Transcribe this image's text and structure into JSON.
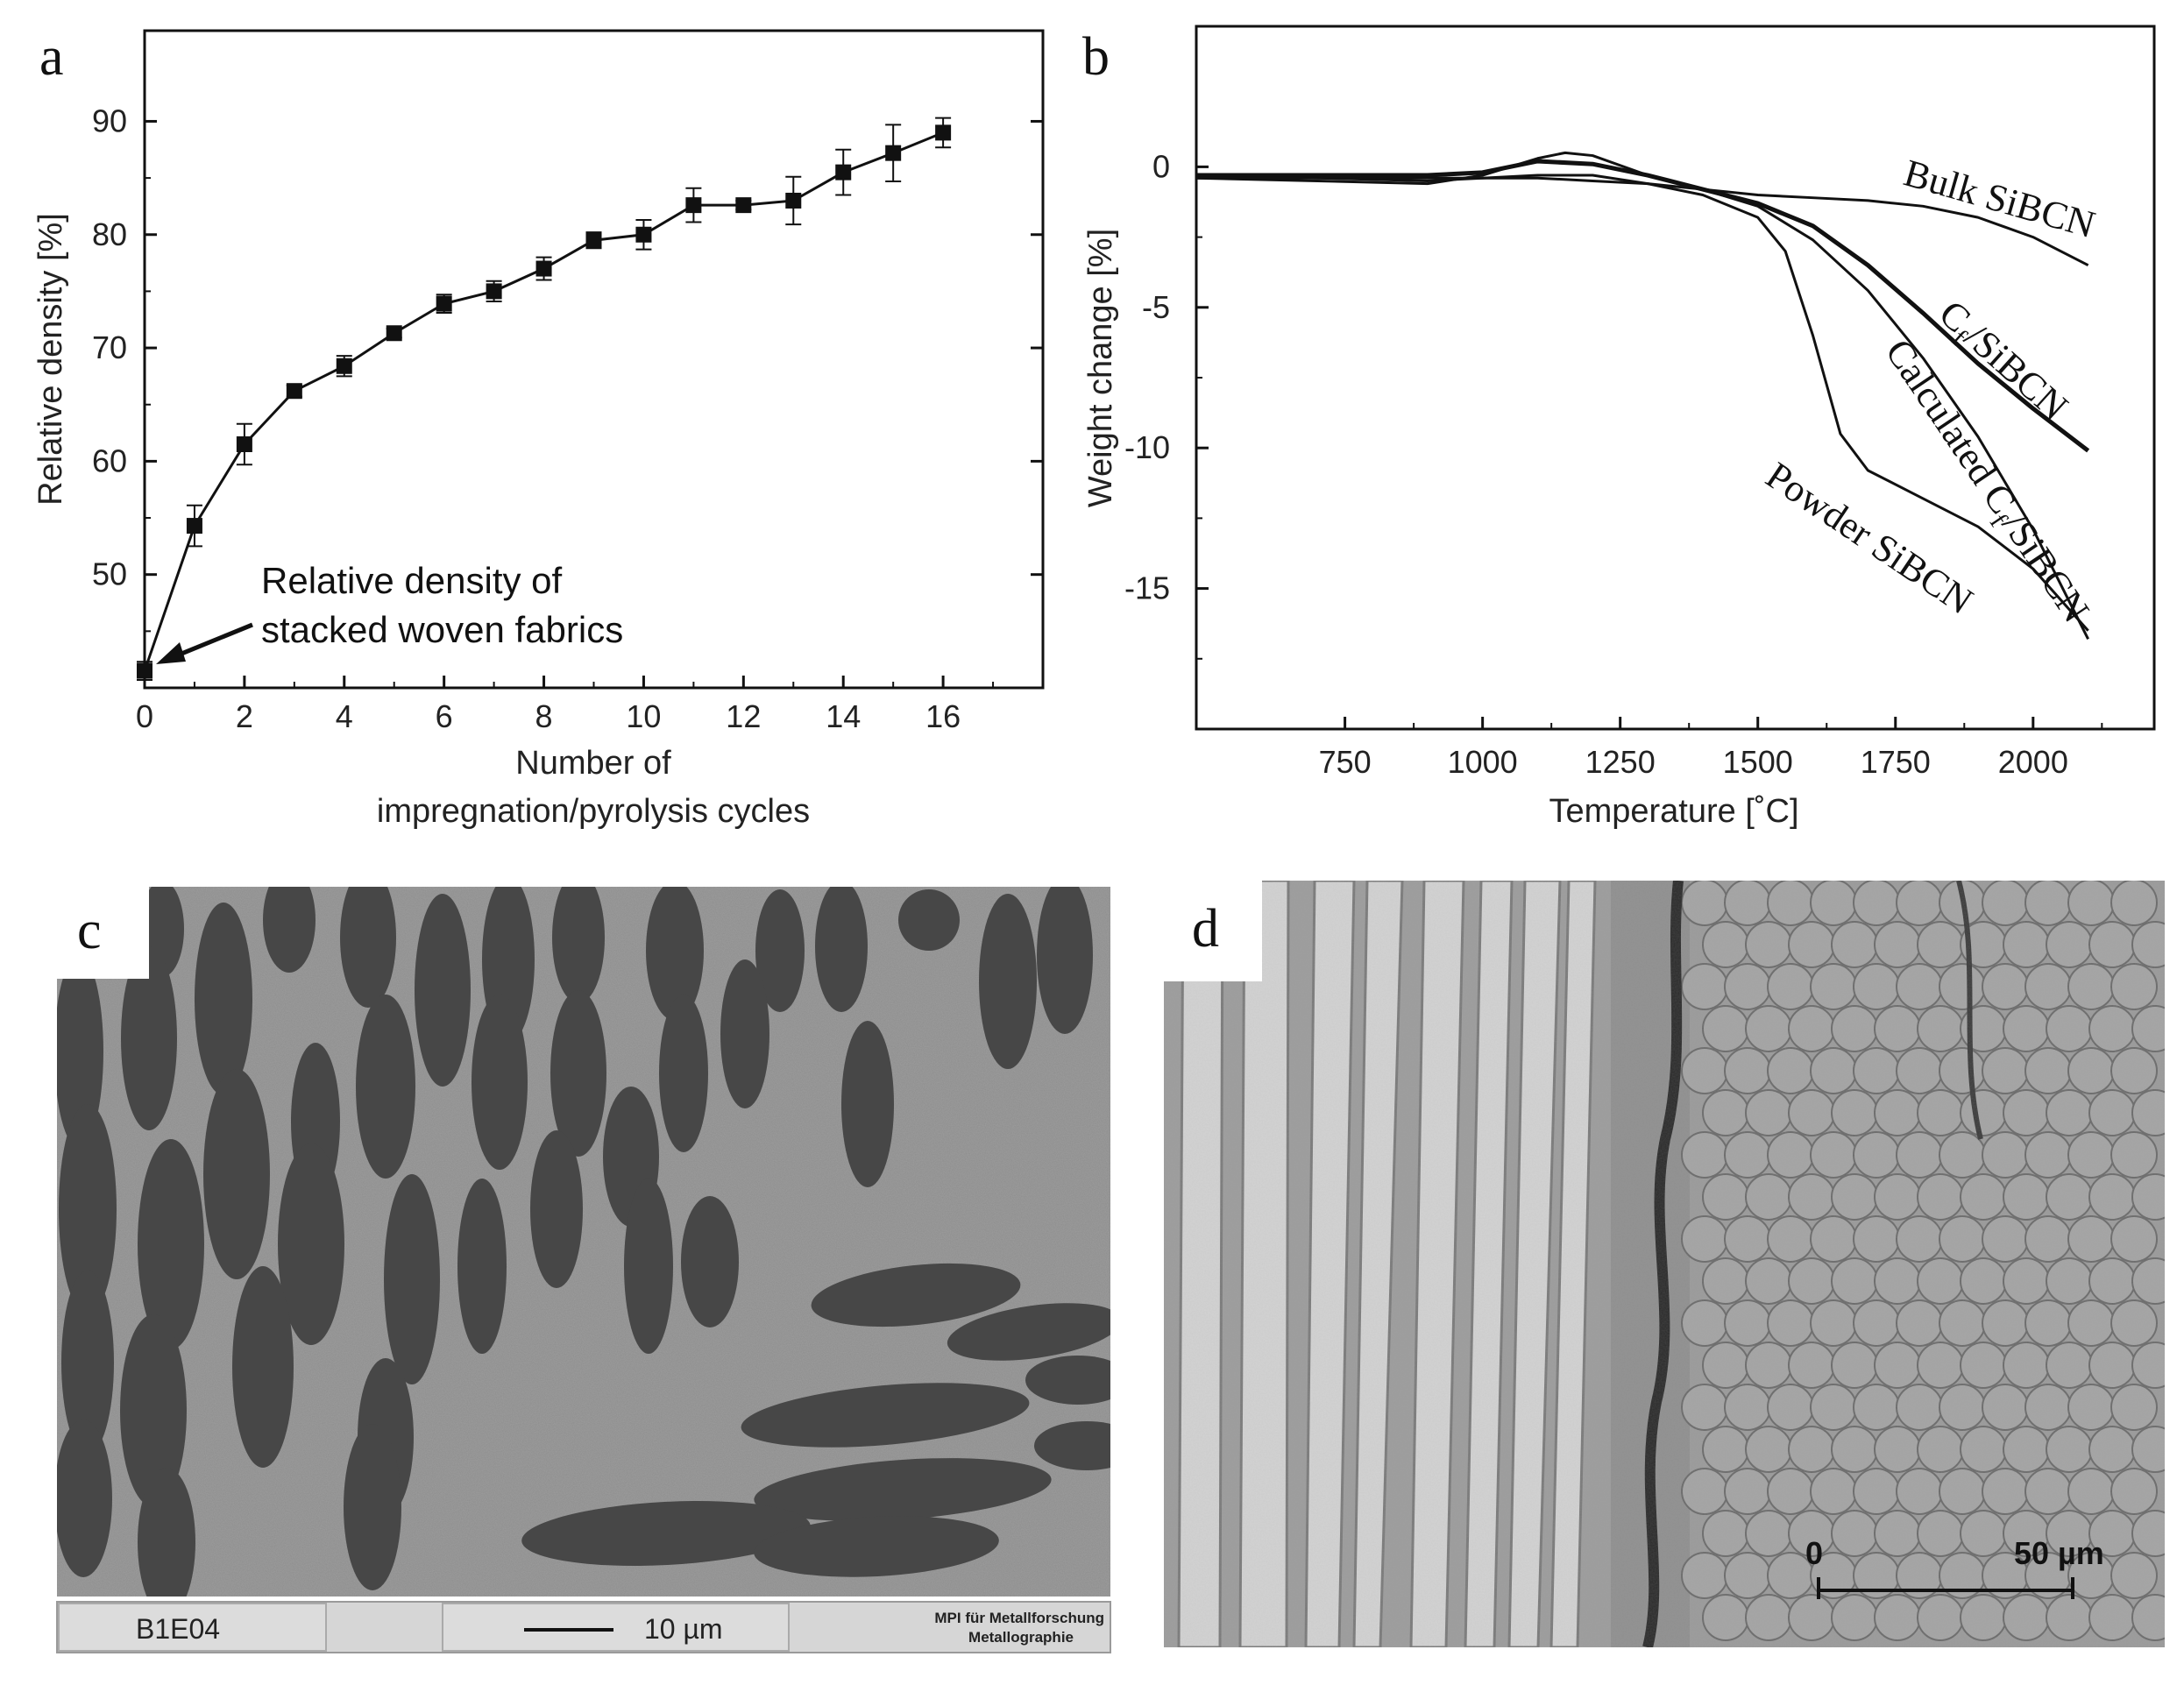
{
  "panels": {
    "a": "a",
    "b": "b",
    "c": "c",
    "d": "d"
  },
  "chart_data": [
    {
      "panel": "a",
      "type": "line",
      "xlabel_line1": "Number of",
      "xlabel_line2": "impregnation/pyrolysis cycles",
      "ylabel": "Relative density [%]",
      "xlim": [
        0,
        18
      ],
      "ylim": [
        40,
        98
      ],
      "xticks": [
        0,
        2,
        4,
        6,
        8,
        10,
        12,
        14,
        16
      ],
      "yticks": [
        50,
        60,
        70,
        80,
        90
      ],
      "x": [
        0,
        1,
        2,
        3,
        4,
        5,
        6,
        7,
        8,
        9,
        10,
        11,
        12,
        13,
        14,
        15,
        16
      ],
      "y": [
        41.5,
        54.3,
        61.5,
        66.2,
        68.4,
        71.3,
        73.9,
        75.0,
        77.0,
        79.5,
        80.0,
        82.6,
        82.6,
        83.0,
        85.5,
        87.2,
        89.0
      ],
      "yerr": [
        0.8,
        1.8,
        1.8,
        0.5,
        0.9,
        0.4,
        0.8,
        0.9,
        1.0,
        0.7,
        1.3,
        1.5,
        0.4,
        2.1,
        2.0,
        2.5,
        1.3
      ],
      "annotation_line1": "Relative density of",
      "annotation_line2": "stacked woven fabrics",
      "grid": false
    },
    {
      "panel": "b",
      "type": "line",
      "xlabel": "Temperature [˚C]",
      "ylabel": "Weight change [%]",
      "xlim": [
        480,
        2220
      ],
      "ylim": [
        -20,
        5
      ],
      "xticks": [
        750,
        1000,
        1250,
        1500,
        1750,
        2000
      ],
      "yticks": [
        0,
        -5,
        -10,
        -15
      ],
      "grid": false,
      "series": [
        {
          "name": "Bulk SiBCN",
          "label_rotation": 16,
          "x": [
            480,
            700,
            900,
            1000,
            1100,
            1200,
            1300,
            1400,
            1500,
            1600,
            1700,
            1800,
            1900,
            2000,
            2100
          ],
          "y": [
            -0.3,
            -0.4,
            -0.4,
            -0.4,
            -0.4,
            -0.5,
            -0.6,
            -0.8,
            -1.0,
            -1.1,
            -1.2,
            -1.4,
            -1.8,
            -2.5,
            -3.5
          ]
        },
        {
          "name": "Cf/SiBCN",
          "label_rotation": 42,
          "x": [
            480,
            700,
            900,
            1000,
            1100,
            1200,
            1300,
            1400,
            1500,
            1600,
            1700,
            1800,
            1900,
            2000,
            2100
          ],
          "y": [
            -0.3,
            -0.3,
            -0.3,
            -0.2,
            0.2,
            0.1,
            -0.3,
            -0.8,
            -1.3,
            -2.1,
            -3.5,
            -5.2,
            -7.0,
            -8.6,
            -10.1
          ]
        },
        {
          "name": "Calculated Cf/SiBCN",
          "label_rotation": 58,
          "x": [
            480,
            700,
            900,
            1000,
            1100,
            1150,
            1200,
            1300,
            1400,
            1500,
            1600,
            1700,
            1800,
            1900,
            2000,
            2100
          ],
          "y": [
            -0.4,
            -0.5,
            -0.6,
            -0.3,
            0.3,
            0.5,
            0.4,
            -0.3,
            -0.8,
            -1.4,
            -2.6,
            -4.4,
            -6.8,
            -9.6,
            -12.9,
            -16.8
          ]
        },
        {
          "name": "Powder SiBCN",
          "label_rotation": 34,
          "x": [
            480,
            700,
            900,
            1000,
            1100,
            1200,
            1300,
            1400,
            1500,
            1550,
            1600,
            1650,
            1700,
            1800,
            1900,
            2000,
            2100
          ],
          "y": [
            -0.4,
            -0.4,
            -0.5,
            -0.4,
            -0.3,
            -0.3,
            -0.6,
            -1.0,
            -1.8,
            -3.0,
            -6.0,
            -9.5,
            -10.8,
            -11.8,
            -12.8,
            -14.3,
            -16.5
          ]
        }
      ]
    }
  ],
  "micrographs": {
    "c": {
      "footer_id": "B1E04",
      "scale_label": "10 µm",
      "institute_line1": "MPI für Metallforschung",
      "institute_line2": "Metallographie"
    },
    "d": {
      "scale_start": "0",
      "scale_end": "50 µm"
    }
  }
}
